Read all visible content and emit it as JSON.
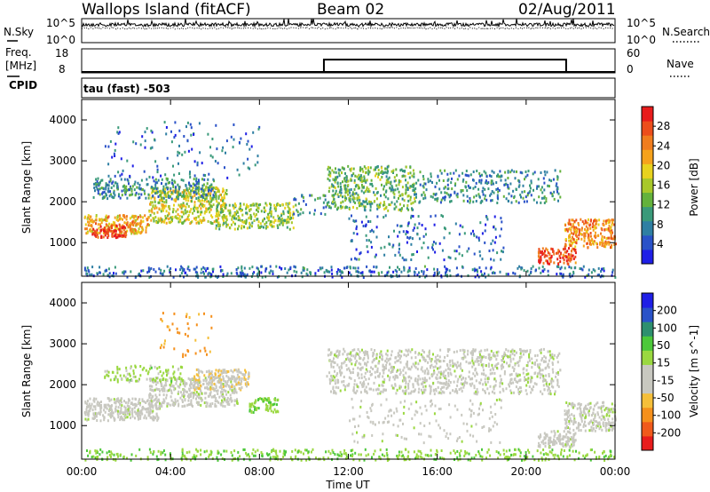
{
  "header": {
    "title": "Wallops Island (fitACF)",
    "beam": "Beam 02",
    "date": "02/Aug/2011"
  },
  "noise_panel": {
    "left_label": "N.Sky",
    "right_label": "N.Search",
    "left_ticks": [
      "10^5",
      "10^0"
    ],
    "right_ticks": [
      "10^5",
      "10^0"
    ],
    "sky_level": 0.75,
    "search_level": 0.6
  },
  "freq_panel": {
    "label_top": "Freq.",
    "label_bottom": "[MHz]",
    "cpid_label": "CPID",
    "left_ticks": [
      "18",
      "8"
    ],
    "right_ticks": [
      "60",
      "0"
    ],
    "right_label": "Nave",
    "freq_value_mhz": 8,
    "nave_steps": [
      {
        "from": 0,
        "to": 10.9,
        "value": 0
      },
      {
        "from": 10.9,
        "to": 21.8,
        "value": 32
      },
      {
        "from": 21.8,
        "to": 24,
        "value": 0
      }
    ]
  },
  "cpid_text": "tau (fast) -503",
  "time_axis": {
    "label": "Time UT",
    "ticks": [
      "00:00",
      "04:00",
      "08:00",
      "12:00",
      "16:00",
      "20:00",
      "00:00"
    ],
    "range_hours": [
      0,
      24
    ]
  },
  "range_axis": {
    "label": "Slant Range [km]",
    "ticks": [
      1000,
      2000,
      3000,
      4000
    ],
    "range_km": [
      180,
      4500
    ]
  },
  "chart_data": [
    {
      "type": "heatmap",
      "name": "power",
      "colorbar_label": "Power [dB]",
      "colorbar_ticks": [
        "4",
        "8",
        "12",
        "16",
        "20",
        "24",
        "28"
      ],
      "colorbar_range": [
        0,
        30
      ],
      "colors": [
        "#1f1fe6",
        "#2a52c8",
        "#2f7fa3",
        "#3a9a7a",
        "#64b23c",
        "#a8c82a",
        "#e8d21e",
        "#f5a21c",
        "#f07d1f",
        "#ec4e1c",
        "#e81c1c"
      ],
      "scatter_regions": [
        {
          "t0": 0.1,
          "t1": 3.0,
          "r0": 1250,
          "r1": 1700,
          "density": 0.85,
          "db": 20
        },
        {
          "t0": 0.4,
          "t1": 2.0,
          "r0": 1150,
          "r1": 1450,
          "density": 0.9,
          "db": 28
        },
        {
          "t0": 3.0,
          "t1": 6.5,
          "r0": 1500,
          "r1": 2400,
          "density": 0.7,
          "db": 16
        },
        {
          "t0": 6.0,
          "t1": 9.5,
          "r0": 1350,
          "r1": 2000,
          "density": 0.6,
          "db": 14
        },
        {
          "t0": 0.5,
          "t1": 6.0,
          "r0": 2100,
          "r1": 2600,
          "density": 0.5,
          "db": 8
        },
        {
          "t0": 1.0,
          "t1": 8.0,
          "r0": 2600,
          "r1": 4000,
          "density": 0.07,
          "db": 6
        },
        {
          "t0": 9.5,
          "t1": 11.0,
          "r0": 1700,
          "r1": 2200,
          "density": 0.25,
          "db": 8
        },
        {
          "t0": 11.0,
          "t1": 15.0,
          "r0": 1800,
          "r1": 2900,
          "density": 0.5,
          "db": 12
        },
        {
          "t0": 15.0,
          "t1": 21.5,
          "r0": 2000,
          "r1": 2800,
          "density": 0.3,
          "db": 8
        },
        {
          "t0": 12.0,
          "t1": 19.0,
          "r0": 600,
          "r1": 1700,
          "density": 0.12,
          "db": 6
        },
        {
          "t0": 20.5,
          "t1": 22.2,
          "r0": 500,
          "r1": 900,
          "density": 0.8,
          "db": 26
        },
        {
          "t0": 21.7,
          "t1": 24.0,
          "r0": 900,
          "r1": 1600,
          "density": 0.75,
          "db": 22
        },
        {
          "t0": 0.1,
          "t1": 24.0,
          "r0": 180,
          "r1": 450,
          "density": 0.35,
          "db": 6
        }
      ]
    },
    {
      "type": "heatmap",
      "name": "velocity",
      "colorbar_label": "Velocity [m s^-1]",
      "colorbar_ticks": [
        "-200",
        "-100",
        "-50",
        "-15",
        "15",
        "50",
        "100",
        "200"
      ],
      "colorbar_range": [
        -250,
        250
      ],
      "colors": [
        "#e81c1c",
        "#f05a1c",
        "#f5901c",
        "#f5bf3a",
        "#c8c8c0",
        "#c8c8c0",
        "#9ad840",
        "#4cc83a",
        "#2e8f6f",
        "#2a52c8",
        "#1f1fe6"
      ],
      "scatter_regions": [
        {
          "t0": 0.1,
          "t1": 3.5,
          "r0": 1150,
          "r1": 1700,
          "density": 0.85,
          "v": 0
        },
        {
          "t0": 3.0,
          "t1": 7.0,
          "r0": 1500,
          "r1": 2200,
          "density": 0.7,
          "v": 0
        },
        {
          "t0": 5.0,
          "t1": 7.5,
          "r0": 1900,
          "r1": 2400,
          "density": 0.7,
          "v": -60
        },
        {
          "t0": 7.5,
          "t1": 8.8,
          "r0": 1350,
          "r1": 1700,
          "density": 0.8,
          "v": 60
        },
        {
          "t0": 1.0,
          "t1": 4.5,
          "r0": 2100,
          "r1": 2500,
          "density": 0.4,
          "v": 40
        },
        {
          "t0": 3.5,
          "t1": 6.0,
          "r0": 2700,
          "r1": 3800,
          "density": 0.08,
          "v": -120
        },
        {
          "t0": 11.0,
          "t1": 21.5,
          "r0": 1800,
          "r1": 2900,
          "density": 0.45,
          "v": 0
        },
        {
          "t0": 12.0,
          "t1": 19.0,
          "r0": 600,
          "r1": 1700,
          "density": 0.1,
          "v": 0
        },
        {
          "t0": 20.5,
          "t1": 22.2,
          "r0": 500,
          "r1": 900,
          "density": 0.85,
          "v": 0
        },
        {
          "t0": 21.7,
          "t1": 24.0,
          "r0": 900,
          "r1": 1600,
          "density": 0.7,
          "v": 0
        },
        {
          "t0": 0.1,
          "t1": 24.0,
          "r0": 180,
          "r1": 450,
          "density": 0.35,
          "v": 60
        }
      ]
    }
  ]
}
